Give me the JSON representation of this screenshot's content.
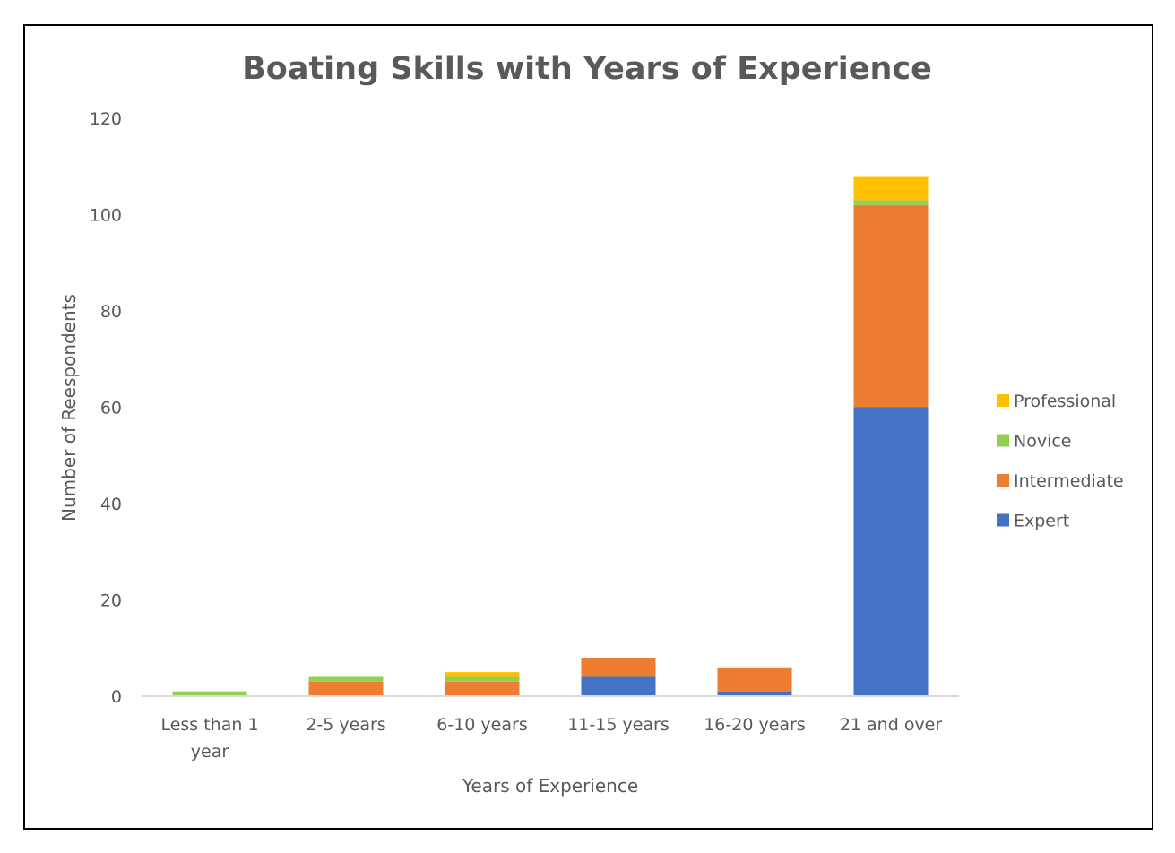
{
  "chart_data": {
    "type": "bar",
    "stacked": true,
    "title": "Boating Skills with Years of Experience",
    "xlabel": "Years of Experience",
    "ylabel": "Number of Reespondents",
    "ylim": [
      0,
      120
    ],
    "yticks": [
      0,
      20,
      40,
      60,
      80,
      100,
      120
    ],
    "grid": false,
    "legend_position": "right",
    "categories": [
      [
        "Less than 1",
        "year"
      ],
      [
        "2-5 years"
      ],
      [
        "6-10 years"
      ],
      [
        "11-15 years"
      ],
      [
        "16-20 years"
      ],
      [
        "21 and over"
      ]
    ],
    "series": [
      {
        "name": "Expert",
        "color": "#4472C4",
        "values": [
          0,
          0,
          0,
          4,
          1,
          60
        ]
      },
      {
        "name": "Intermediate",
        "color": "#ED7D31",
        "values": [
          0,
          3,
          3,
          4,
          5,
          42
        ]
      },
      {
        "name": "Novice",
        "color": "#92D050",
        "values": [
          1,
          1,
          1,
          0,
          0,
          1
        ]
      },
      {
        "name": "Professional",
        "color": "#FFC000",
        "values": [
          0,
          0,
          1,
          0,
          0,
          5
        ]
      }
    ]
  }
}
